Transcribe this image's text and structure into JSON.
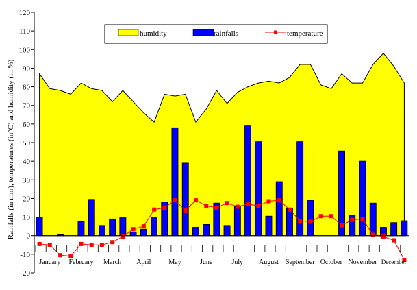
{
  "chart_data": {
    "type": "area",
    "title": "",
    "xlabel": "",
    "ylabel": "Rainfalls (in mm), temperatures (in°C) and humidity (in %)",
    "ylim": [
      -20,
      120
    ],
    "yticks": [
      -20,
      -10,
      0,
      10,
      20,
      30,
      40,
      50,
      60,
      70,
      80,
      90,
      100,
      110,
      120
    ],
    "grid": false,
    "legend_position": "top-center",
    "periods_per_month": 3,
    "months": [
      "January",
      "February",
      "March",
      "April",
      "May",
      "June",
      "July",
      "August",
      "September",
      "October",
      "November",
      "December"
    ],
    "legend": {
      "humidity": "humidity",
      "rainfalls": "rainfalls",
      "temperature": "temperature"
    },
    "colors": {
      "humidity": "#ffff00",
      "rainfalls": "#0000ff",
      "temperature": "#ff0000"
    },
    "series": [
      {
        "key": "humidity",
        "name": "humidity",
        "type": "area",
        "values": [
          87,
          79,
          78,
          76,
          82,
          79,
          78,
          72,
          78,
          72,
          66,
          61,
          76,
          75,
          76,
          61,
          68,
          78,
          71,
          77,
          80,
          82,
          83,
          82,
          85,
          92,
          92,
          81,
          79,
          87,
          82,
          82,
          92,
          98,
          91,
          82
        ]
      },
      {
        "key": "rainfalls",
        "name": "rainfalls",
        "type": "bar",
        "values": [
          10,
          0,
          0.5,
          0,
          7.5,
          19.5,
          5.5,
          9,
          10,
          2,
          3.5,
          10,
          18,
          58,
          39,
          4.5,
          6,
          17.5,
          5.5,
          16,
          59,
          50.5,
          10.5,
          29,
          14.5,
          50.5,
          19,
          0,
          0,
          45.5,
          11,
          40,
          17.5,
          4.5,
          7,
          8
        ]
      },
      {
        "key": "temperature",
        "name": "temperature",
        "type": "line",
        "values": [
          -4.5,
          -5,
          -10.5,
          -11,
          -4.5,
          -5,
          -5,
          -3.5,
          -0.5,
          3.5,
          5,
          14,
          15,
          19,
          13.5,
          19,
          16,
          15,
          17.5,
          15.5,
          17,
          16,
          18.5,
          19,
          14,
          8,
          7.5,
          10.5,
          10.5,
          5.5,
          8.5,
          9,
          0.5,
          -0.5,
          -2.5,
          -13
        ]
      }
    ]
  }
}
